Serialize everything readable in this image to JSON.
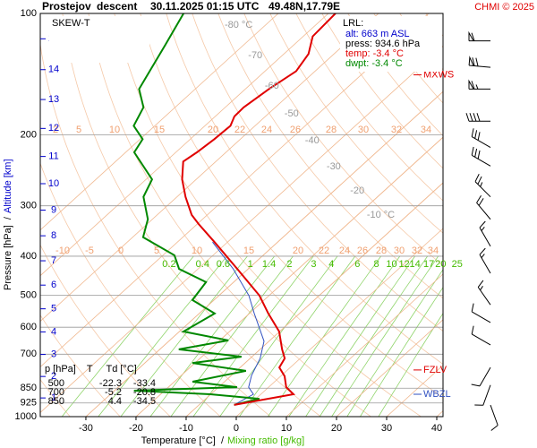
{
  "chart_data": {
    "type": "skewt",
    "title": {
      "station": "Prostejov",
      "mode": "descent",
      "time": "30.11.2025 01:15 UTC",
      "position": "49.48N,17.79E"
    },
    "credit": "CHMI © 2025",
    "legend_title": "SKEW-T",
    "xlabel": "Temperature [°C]  /",
    "x2label": "Mixing ratio [g/kg]",
    "ylabel": "Pressure [hPa]  /",
    "y2label": "Altitude [km]",
    "xlim": [
      -39.1,
      41.25
    ],
    "ylim": [
      1000,
      100
    ],
    "log_y": true,
    "grid": true,
    "xticks": [
      -30,
      -20,
      -10,
      0,
      10,
      20,
      30,
      40
    ],
    "yticks": [
      100,
      200,
      300,
      400,
      500,
      600,
      700,
      850,
      925,
      1000
    ],
    "altitude_ticks": [
      1,
      2,
      3,
      4,
      5,
      6,
      7,
      8,
      9,
      10,
      11,
      12,
      13,
      14,
      15
    ],
    "isotherm_labels": [
      {
        "value": -80,
        "label": "-80 °C"
      },
      -70,
      -60,
      -50,
      -40,
      -30,
      -20,
      {
        "value": -10,
        "label": "-10 °C"
      }
    ],
    "mixing_ratios": [
      0.2,
      0.4,
      0.6,
      1,
      1.4,
      2,
      3,
      4,
      6,
      8,
      10,
      12,
      14,
      17,
      20,
      25
    ],
    "adiabat_labels_upper": [
      2,
      5,
      10,
      15,
      20,
      22,
      24,
      26,
      28,
      30,
      32,
      34
    ],
    "adiabat_labels_lower": [
      -10,
      -5,
      0,
      5,
      10,
      15,
      20,
      22,
      24,
      26,
      28,
      30,
      32,
      34
    ],
    "series": [
      {
        "name": "temperature",
        "color": "#e00000",
        "pressure": [
          935,
          880,
          845,
          794,
          755,
          717,
          681,
          615,
          555,
          501,
          430,
          369,
          333,
          316,
          285,
          258,
          233,
          221,
          205,
          190,
          180,
          171,
          154,
          139,
          126,
          114,
          100
        ],
        "values": [
          -3,
          6.5,
          3.5,
          0.8,
          -2.2,
          -3.1,
          -5.6,
          -10.1,
          -16.2,
          -21.9,
          -32.2,
          -42.6,
          -49.7,
          -53.1,
          -58.3,
          -62.8,
          -66.5,
          -65.8,
          -65.2,
          -64.9,
          -66.2,
          -66.3,
          -65.3,
          -63.8,
          -65.1,
          -68.1,
          -68.6
        ]
      },
      {
        "name": "dew point",
        "color": "#008800",
        "pressure": [
          935,
          903,
          880,
          862,
          845,
          819,
          770,
          736,
          710,
          681,
          647,
          615,
          555,
          514,
          464,
          430,
          398,
          359,
          324,
          285,
          258,
          221,
          205,
          190,
          171,
          154,
          136,
          120,
          100
        ],
        "values": [
          -3,
          0.7,
          -10.1,
          -26.1,
          -6.3,
          -16.4,
          -8.1,
          -20.5,
          -12.1,
          -26.2,
          -18.3,
          -29.2,
          -26.9,
          -34.3,
          -35.5,
          -43.8,
          -47.7,
          -57.9,
          -60.9,
          -66.7,
          -68.8,
          -78.3,
          -79.5,
          -84.2,
          -86.3,
          -91.2,
          -93.4,
          -95.6,
          -98.9
        ]
      },
      {
        "name": "wet bulb temp.",
        "color": "#3050c0",
        "pressure": [
          935,
          880,
          845,
          790,
          717,
          650,
          555,
          501,
          430,
          369
        ],
        "values": [
          -3,
          -1.5,
          -4,
          -6,
          -8,
          -11,
          -19,
          -24,
          -33,
          -43
        ]
      }
    ],
    "lrl": {
      "title": "LRL:",
      "alt": "alt: 663 m ASL",
      "press": "press: 934.6 hPa",
      "temp": "temp: -3.4 °C",
      "dwpt": "dwpt: -3.4 °C"
    },
    "table": {
      "header": "p [hPa]    T     Td [°C]",
      "rows": [
        [
          500,
          -22.3,
          -33.4
        ],
        [
          700,
          -5.2,
          -20.8
        ],
        [
          850,
          4.4,
          -34.5
        ]
      ]
    },
    "levels": [
      {
        "name": "MXWS",
        "pressure": 142,
        "color": "#e00000"
      },
      {
        "name": "FZLV",
        "pressure": 766,
        "color": "#e00000"
      },
      {
        "name": "WBZL",
        "pressure": 880,
        "color": "#3050c0"
      }
    ],
    "winds": {
      "pressure": [
        117,
        136,
        154,
        185,
        215,
        239,
        285,
        324,
        378,
        441,
        528,
        584,
        664,
        755,
        835,
        936
      ],
      "direction": [
        270,
        275,
        270,
        270,
        300,
        300,
        315,
        320,
        330,
        330,
        325,
        300,
        300,
        210,
        200,
        160
      ],
      "speed": [
        60,
        70,
        65,
        40,
        30,
        30,
        25,
        20,
        15,
        15,
        15,
        10,
        10,
        10,
        10,
        10
      ]
    }
  }
}
